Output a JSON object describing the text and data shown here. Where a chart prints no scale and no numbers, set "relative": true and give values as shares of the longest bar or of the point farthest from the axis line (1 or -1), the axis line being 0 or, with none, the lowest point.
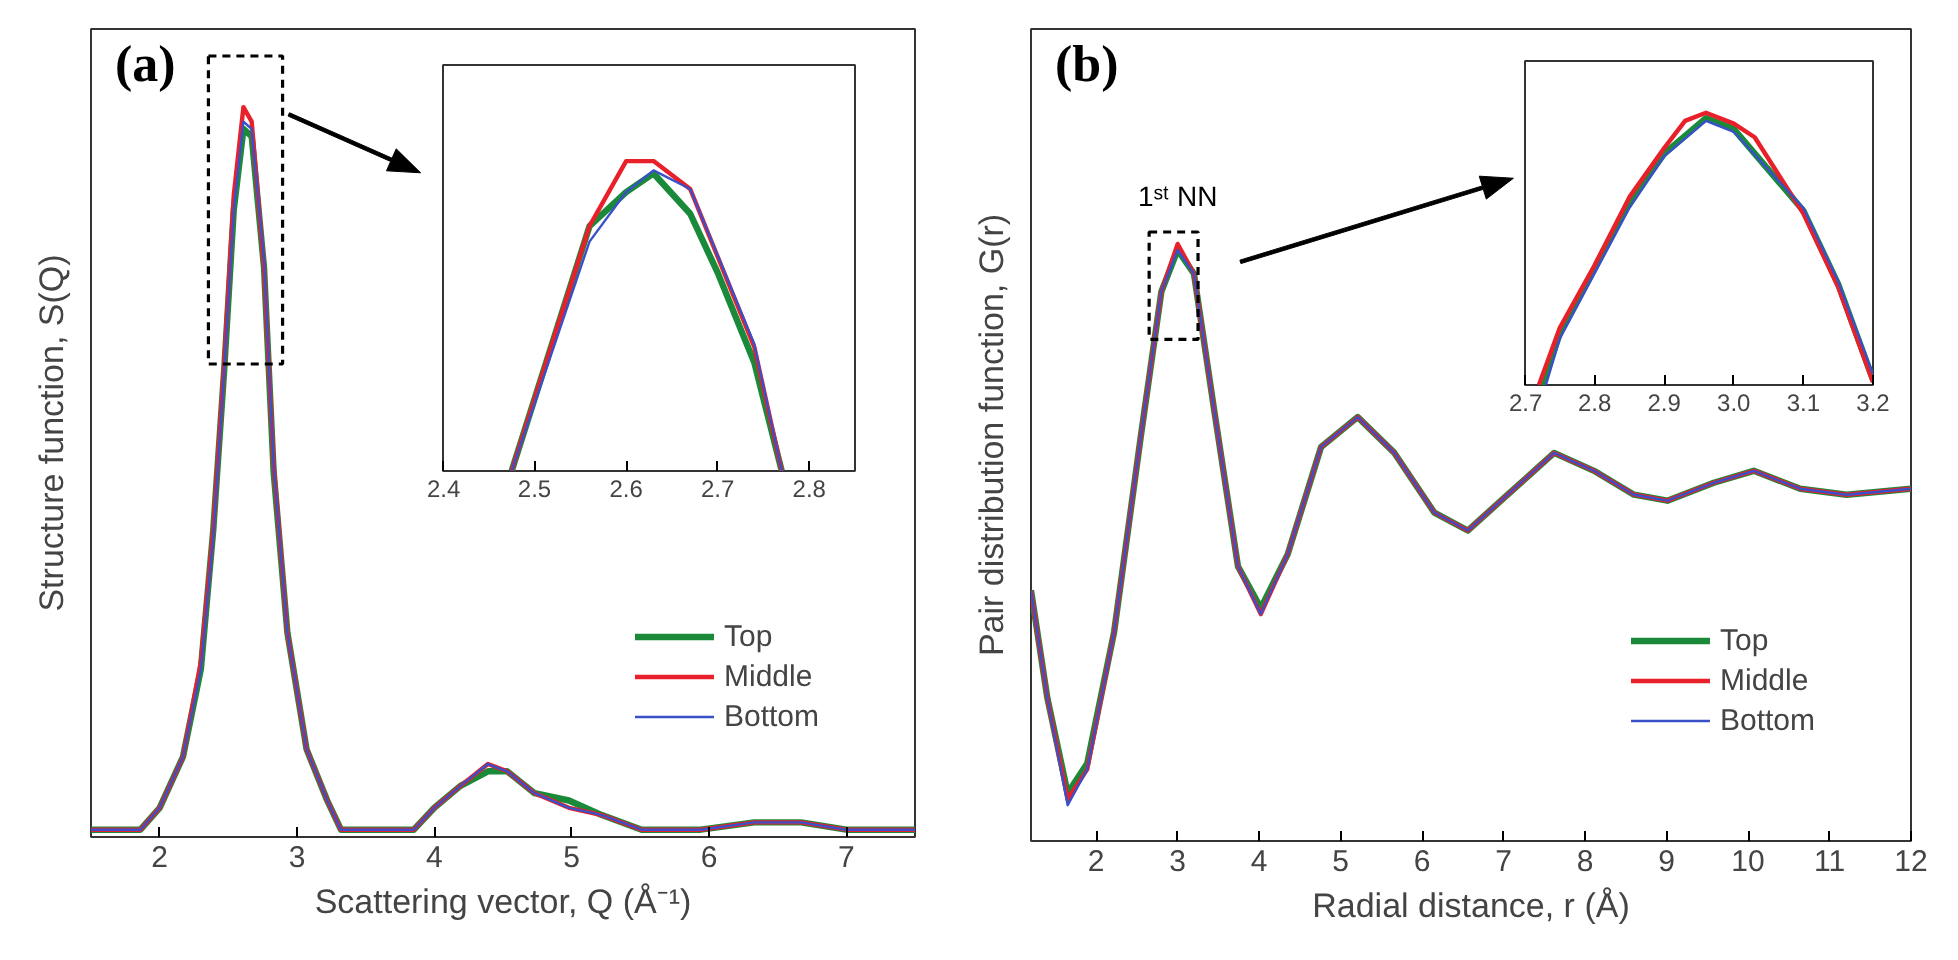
{
  "chart_data": [
    {
      "type": "line",
      "xlabel": "Scattering vector, Q (Å⁻¹)",
      "ylabel": "Structure function, S(Q)",
      "relative": true,
      "legend": "bottom right",
      "tick_labels": "x",
      "xlim": [
        1.5,
        7.5
      ],
      "xticks": [
        2,
        3,
        4,
        5,
        6,
        7
      ],
      "annotations": [
        "(a)"
      ],
      "x": [
        1.5,
        1.86,
        2.0,
        2.17,
        2.3,
        2.39,
        2.47,
        2.54,
        2.61,
        2.67,
        2.76,
        2.83,
        2.93,
        3.07,
        3.22,
        3.32,
        3.85,
        4.0,
        4.19,
        4.39,
        4.53,
        4.73,
        4.98,
        5.22,
        5.51,
        5.94,
        6.33,
        6.67,
        7.0,
        7.5
      ],
      "series": [
        {
          "name": "Top",
          "color": "#1a8a3a",
          "values": [
            0.01,
            0.01,
            0.04,
            0.11,
            0.23,
            0.42,
            0.64,
            0.86,
            0.97,
            0.96,
            0.78,
            0.5,
            0.28,
            0.12,
            0.05,
            0.01,
            0.01,
            0.04,
            0.07,
            0.09,
            0.09,
            0.06,
            0.05,
            0.03,
            0.01,
            0.01,
            0.02,
            0.02,
            0.01,
            0.01
          ]
        },
        {
          "name": "Middle",
          "color": "#e8202a",
          "values": [
            0.01,
            0.01,
            0.04,
            0.11,
            0.24,
            0.42,
            0.65,
            0.88,
            1.0,
            0.98,
            0.78,
            0.51,
            0.28,
            0.12,
            0.05,
            0.01,
            0.01,
            0.04,
            0.07,
            0.1,
            0.09,
            0.06,
            0.04,
            0.03,
            0.01,
            0.01,
            0.02,
            0.02,
            0.01,
            0.01
          ]
        },
        {
          "name": "Bottom",
          "color": "#3a50c8",
          "values": [
            0.01,
            0.01,
            0.04,
            0.11,
            0.23,
            0.41,
            0.64,
            0.86,
            0.98,
            0.97,
            0.79,
            0.51,
            0.28,
            0.12,
            0.05,
            0.01,
            0.01,
            0.04,
            0.07,
            0.1,
            0.09,
            0.06,
            0.04,
            0.03,
            0.01,
            0.01,
            0.02,
            0.02,
            0.01,
            0.01
          ]
        }
      ]
    },
    {
      "type": "line",
      "relative": true,
      "tick_labels": "x",
      "xlim": [
        2.4,
        2.85
      ],
      "xticks": [
        {
          "value": 2.4,
          "label": "2.4"
        },
        {
          "value": 2.5,
          "label": "2.5"
        },
        {
          "value": 2.6,
          "label": "2.6"
        },
        {
          "value": 2.7,
          "label": "2.7"
        },
        {
          "value": 2.8,
          "label": "2.8"
        }
      ],
      "series": [
        {
          "color": "#1a8a3a",
          "x": [
            2.475,
            2.56,
            2.6,
            2.63,
            2.67,
            2.7,
            2.74,
            2.77
          ],
          "values": [
            0,
            0.79,
            0.9,
            0.96,
            0.83,
            0.64,
            0.35,
            0
          ]
        },
        {
          "color": "#e8202a",
          "x": [
            2.475,
            2.56,
            2.6,
            2.63,
            2.67,
            2.74,
            2.77
          ],
          "values": [
            0,
            0.79,
            1.0,
            1.0,
            0.91,
            0.4,
            0
          ]
        },
        {
          "color": "#3a50c8",
          "x": [
            2.475,
            2.56,
            2.6,
            2.63,
            2.67,
            2.74,
            2.77
          ],
          "values": [
            0,
            0.74,
            0.9,
            0.97,
            0.91,
            0.41,
            0
          ]
        }
      ]
    },
    {
      "type": "line",
      "xlabel": "Radial distance, r (Å)",
      "ylabel": "Pair distribution function, G(r)",
      "relative": true,
      "legend": "bottom right",
      "tick_labels": "x",
      "xlim": [
        1.2,
        12
      ],
      "xticks": [
        2,
        3,
        4,
        5,
        6,
        7,
        8,
        9,
        10,
        11,
        12
      ],
      "annotations": [
        "(b)",
        "1ˢᵗ NN"
      ],
      "x": [
        1.2,
        1.4,
        1.65,
        1.89,
        2.22,
        2.55,
        2.8,
        3.0,
        3.2,
        3.45,
        3.74,
        4.02,
        4.35,
        4.76,
        5.21,
        5.66,
        6.15,
        6.56,
        7.05,
        7.62,
        8.11,
        8.6,
        9.01,
        9.58,
        10.07,
        10.64,
        11.21,
        12.0
      ],
      "series": [
        {
          "name": "Top",
          "color": "#1a8a3a",
          "values": [
            0.42,
            0.24,
            0.08,
            0.13,
            0.35,
            0.68,
            0.92,
            0.99,
            0.95,
            0.72,
            0.46,
            0.39,
            0.48,
            0.66,
            0.71,
            0.65,
            0.55,
            0.52,
            0.58,
            0.65,
            0.62,
            0.58,
            0.57,
            0.6,
            0.62,
            0.59,
            0.58,
            0.59
          ]
        },
        {
          "name": "Middle",
          "color": "#e8202a",
          "values": [
            0.42,
            0.24,
            0.07,
            0.12,
            0.35,
            0.68,
            0.92,
            1.0,
            0.95,
            0.72,
            0.46,
            0.38,
            0.48,
            0.66,
            0.71,
            0.65,
            0.55,
            0.52,
            0.58,
            0.65,
            0.62,
            0.58,
            0.57,
            0.6,
            0.62,
            0.59,
            0.58,
            0.59
          ]
        },
        {
          "name": "Bottom",
          "color": "#3a50c8",
          "values": [
            0.42,
            0.24,
            0.06,
            0.12,
            0.35,
            0.68,
            0.92,
            0.99,
            0.95,
            0.72,
            0.46,
            0.38,
            0.48,
            0.66,
            0.71,
            0.65,
            0.55,
            0.52,
            0.58,
            0.65,
            0.62,
            0.58,
            0.57,
            0.6,
            0.62,
            0.59,
            0.58,
            0.59
          ]
        }
      ]
    },
    {
      "type": "line",
      "relative": true,
      "tick_labels": "x",
      "xlim": [
        2.7,
        3.2
      ],
      "xticks": [
        {
          "value": 2.7,
          "label": "2.7"
        },
        {
          "value": 2.8,
          "label": "2.8"
        },
        {
          "value": 2.9,
          "label": "2.9"
        },
        {
          "value": 3.0,
          "label": "3.0"
        },
        {
          "value": 3.1,
          "label": "3.1"
        },
        {
          "value": 3.2,
          "label": "3.2"
        }
      ],
      "series": [
        {
          "color": "#1a8a3a",
          "x": [
            2.725,
            2.75,
            2.8,
            2.85,
            2.9,
            2.96,
            3.0,
            3.1,
            3.15,
            3.2
          ],
          "values": [
            0,
            0.19,
            0.43,
            0.67,
            0.85,
            0.98,
            0.94,
            0.64,
            0.37,
            0.02
          ]
        },
        {
          "color": "#e8202a",
          "x": [
            2.72,
            2.75,
            2.8,
            2.85,
            2.9,
            2.93,
            2.96,
            3.0,
            3.03,
            3.1,
            3.15,
            3.2
          ],
          "values": [
            0,
            0.21,
            0.44,
            0.69,
            0.87,
            0.97,
            1.0,
            0.96,
            0.91,
            0.63,
            0.36,
            0.01
          ]
        },
        {
          "color": "#3a50c8",
          "x": [
            2.73,
            2.75,
            2.8,
            2.85,
            2.9,
            2.96,
            3.0,
            3.1,
            3.15,
            3.2
          ],
          "values": [
            0,
            0.17,
            0.41,
            0.65,
            0.84,
            0.97,
            0.93,
            0.65,
            0.38,
            0.04
          ]
        }
      ]
    }
  ]
}
